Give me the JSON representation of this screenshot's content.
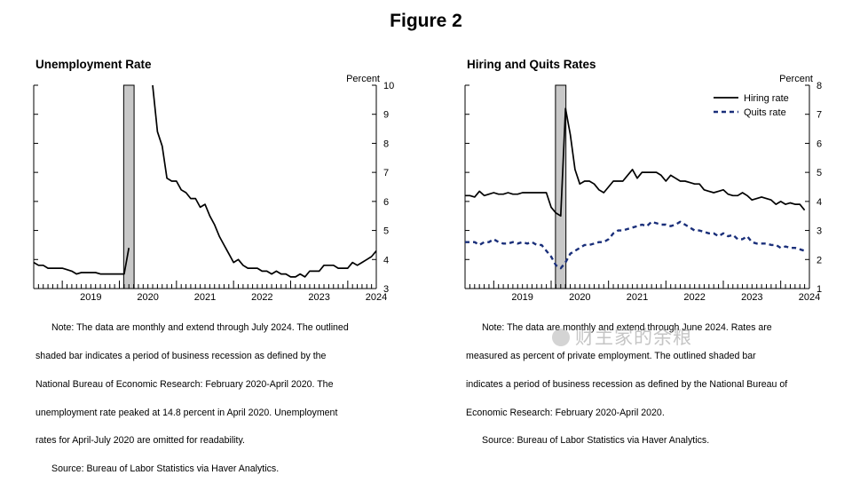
{
  "figure_title": "Figure 2",
  "watermark": "财主家的余粮",
  "chart_data": [
    {
      "type": "line",
      "title": "Unemployment Rate",
      "unit_label": "Percent",
      "x_tick_labels": [
        "2019",
        "2020",
        "2021",
        "2022",
        "2023",
        "2024"
      ],
      "ylim": [
        3,
        10
      ],
      "y_ticks": [
        3,
        4,
        5,
        6,
        7,
        8,
        9,
        10
      ],
      "recession_shading": [
        "2020-02",
        "2020-04"
      ],
      "series": [
        {
          "label": "",
          "color": "#000000",
          "style": "solid",
          "points": [
            [
              "2018-07",
              3.9
            ],
            [
              "2018-08",
              3.8
            ],
            [
              "2018-09",
              3.8
            ],
            [
              "2018-10",
              3.7
            ],
            [
              "2018-11",
              3.7
            ],
            [
              "2018-12",
              3.7
            ],
            [
              "2019-01",
              3.7
            ],
            [
              "2019-02",
              3.65
            ],
            [
              "2019-03",
              3.6
            ],
            [
              "2019-04",
              3.5
            ],
            [
              "2019-05",
              3.55
            ],
            [
              "2019-06",
              3.55
            ],
            [
              "2019-07",
              3.55
            ],
            [
              "2019-08",
              3.55
            ],
            [
              "2019-09",
              3.5
            ],
            [
              "2019-10",
              3.5
            ],
            [
              "2019-11",
              3.5
            ],
            [
              "2019-12",
              3.5
            ],
            [
              "2020-01",
              3.5
            ],
            [
              "2020-02",
              3.5
            ],
            [
              "2020-03",
              4.4
            ],
            null,
            [
              "2020-08",
              10.0
            ],
            [
              "2020-09",
              8.4
            ],
            [
              "2020-10",
              7.9
            ],
            [
              "2020-11",
              6.8
            ],
            [
              "2020-12",
              6.7
            ],
            [
              "2021-01",
              6.7
            ],
            [
              "2021-02",
              6.4
            ],
            [
              "2021-03",
              6.3
            ],
            [
              "2021-04",
              6.1
            ],
            [
              "2021-05",
              6.1
            ],
            [
              "2021-06",
              5.8
            ],
            [
              "2021-07",
              5.9
            ],
            [
              "2021-08",
              5.5
            ],
            [
              "2021-09",
              5.2
            ],
            [
              "2021-10",
              4.8
            ],
            [
              "2021-11",
              4.5
            ],
            [
              "2021-12",
              4.2
            ],
            [
              "2022-01",
              3.9
            ],
            [
              "2022-02",
              4.0
            ],
            [
              "2022-03",
              3.8
            ],
            [
              "2022-04",
              3.7
            ],
            [
              "2022-05",
              3.7
            ],
            [
              "2022-06",
              3.7
            ],
            [
              "2022-07",
              3.6
            ],
            [
              "2022-08",
              3.6
            ],
            [
              "2022-09",
              3.5
            ],
            [
              "2022-10",
              3.6
            ],
            [
              "2022-11",
              3.5
            ],
            [
              "2022-12",
              3.5
            ],
            [
              "2023-01",
              3.4
            ],
            [
              "2023-02",
              3.4
            ],
            [
              "2023-03",
              3.5
            ],
            [
              "2023-04",
              3.4
            ],
            [
              "2023-05",
              3.6
            ],
            [
              "2023-06",
              3.6
            ],
            [
              "2023-07",
              3.6
            ],
            [
              "2023-08",
              3.8
            ],
            [
              "2023-09",
              3.8
            ],
            [
              "2023-10",
              3.8
            ],
            [
              "2023-11",
              3.7
            ],
            [
              "2023-12",
              3.7
            ],
            [
              "2024-01",
              3.7
            ],
            [
              "2024-02",
              3.9
            ],
            [
              "2024-03",
              3.8
            ],
            [
              "2024-04",
              3.9
            ],
            [
              "2024-05",
              4.0
            ],
            [
              "2024-06",
              4.1
            ],
            [
              "2024-07",
              4.3
            ]
          ]
        }
      ],
      "notes": [
        "Note: The data are monthly and extend through July 2024. The outlined",
        "shaded bar indicates a period of business recession as defined by the",
        "National Bureau of Economic Research: February 2020-April 2020. The",
        "unemployment rate peaked at 14.8 percent in April 2020. Unemployment",
        "rates for April-July 2020 are omitted for readability."
      ],
      "source": "Source: Bureau of Labor Statistics via Haver Analytics."
    },
    {
      "type": "line",
      "title": "Hiring and Quits Rates",
      "unit_label": "Percent",
      "x_tick_labels": [
        "2019",
        "2020",
        "2021",
        "2022",
        "2023",
        "2024"
      ],
      "ylim": [
        1,
        8
      ],
      "y_ticks": [
        1,
        2,
        3,
        4,
        5,
        6,
        7,
        8
      ],
      "legend_position": "top-right",
      "recession_shading": [
        "2020-02",
        "2020-04"
      ],
      "series": [
        {
          "label": "Hiring rate",
          "color": "#000000",
          "style": "solid",
          "points": [
            [
              "2018-07",
              4.2
            ],
            [
              "2018-08",
              4.2
            ],
            [
              "2018-09",
              4.15
            ],
            [
              "2018-10",
              4.35
            ],
            [
              "2018-11",
              4.2
            ],
            [
              "2018-12",
              4.25
            ],
            [
              "2019-01",
              4.3
            ],
            [
              "2019-02",
              4.25
            ],
            [
              "2019-03",
              4.25
            ],
            [
              "2019-04",
              4.3
            ],
            [
              "2019-05",
              4.25
            ],
            [
              "2019-06",
              4.25
            ],
            [
              "2019-07",
              4.3
            ],
            [
              "2019-08",
              4.3
            ],
            [
              "2019-09",
              4.3
            ],
            [
              "2019-10",
              4.3
            ],
            [
              "2019-11",
              4.3
            ],
            [
              "2019-12",
              4.3
            ],
            [
              "2020-01",
              3.8
            ],
            [
              "2020-02",
              3.6
            ],
            [
              "2020-03",
              3.5
            ],
            [
              "2020-04",
              7.2
            ],
            [
              "2020-05",
              6.3
            ],
            [
              "2020-06",
              5.1
            ],
            [
              "2020-07",
              4.6
            ],
            [
              "2020-08",
              4.7
            ],
            [
              "2020-09",
              4.7
            ],
            [
              "2020-10",
              4.6
            ],
            [
              "2020-11",
              4.4
            ],
            [
              "2020-12",
              4.3
            ],
            [
              "2021-01",
              4.5
            ],
            [
              "2021-02",
              4.7
            ],
            [
              "2021-03",
              4.7
            ],
            [
              "2021-04",
              4.7
            ],
            [
              "2021-05",
              4.9
            ],
            [
              "2021-06",
              5.1
            ],
            [
              "2021-07",
              4.8
            ],
            [
              "2021-08",
              5.0
            ],
            [
              "2021-09",
              5.0
            ],
            [
              "2021-10",
              5.0
            ],
            [
              "2021-11",
              5.0
            ],
            [
              "2021-12",
              4.9
            ],
            [
              "2022-01",
              4.7
            ],
            [
              "2022-02",
              4.9
            ],
            [
              "2022-03",
              4.8
            ],
            [
              "2022-04",
              4.7
            ],
            [
              "2022-05",
              4.7
            ],
            [
              "2022-06",
              4.65
            ],
            [
              "2022-07",
              4.6
            ],
            [
              "2022-08",
              4.6
            ],
            [
              "2022-09",
              4.4
            ],
            [
              "2022-10",
              4.35
            ],
            [
              "2022-11",
              4.3
            ],
            [
              "2022-12",
              4.35
            ],
            [
              "2023-01",
              4.4
            ],
            [
              "2023-02",
              4.25
            ],
            [
              "2023-03",
              4.2
            ],
            [
              "2023-04",
              4.2
            ],
            [
              "2023-05",
              4.3
            ],
            [
              "2023-06",
              4.2
            ],
            [
              "2023-07",
              4.05
            ],
            [
              "2023-08",
              4.1
            ],
            [
              "2023-09",
              4.15
            ],
            [
              "2023-10",
              4.1
            ],
            [
              "2023-11",
              4.05
            ],
            [
              "2023-12",
              3.9
            ],
            [
              "2024-01",
              4.0
            ],
            [
              "2024-02",
              3.9
            ],
            [
              "2024-03",
              3.95
            ],
            [
              "2024-04",
              3.9
            ],
            [
              "2024-05",
              3.9
            ],
            [
              "2024-06",
              3.7
            ]
          ]
        },
        {
          "label": "Quits rate",
          "color": "#1a2f7a",
          "style": "dashed",
          "points": [
            [
              "2018-07",
              2.6
            ],
            [
              "2018-08",
              2.6
            ],
            [
              "2018-09",
              2.6
            ],
            [
              "2018-10",
              2.5
            ],
            [
              "2018-11",
              2.6
            ],
            [
              "2018-12",
              2.6
            ],
            [
              "2019-01",
              2.7
            ],
            [
              "2019-02",
              2.6
            ],
            [
              "2019-03",
              2.55
            ],
            [
              "2019-04",
              2.55
            ],
            [
              "2019-05",
              2.6
            ],
            [
              "2019-06",
              2.55
            ],
            [
              "2019-07",
              2.6
            ],
            [
              "2019-08",
              2.55
            ],
            [
              "2019-09",
              2.6
            ],
            [
              "2019-10",
              2.5
            ],
            [
              "2019-11",
              2.5
            ],
            [
              "2019-12",
              2.3
            ],
            [
              "2020-01",
              2.1
            ],
            [
              "2020-02",
              1.8
            ],
            [
              "2020-03",
              1.7
            ],
            [
              "2020-04",
              1.9
            ],
            [
              "2020-05",
              2.2
            ],
            [
              "2020-06",
              2.3
            ],
            [
              "2020-07",
              2.4
            ],
            [
              "2020-08",
              2.5
            ],
            [
              "2020-09",
              2.5
            ],
            [
              "2020-10",
              2.55
            ],
            [
              "2020-11",
              2.6
            ],
            [
              "2020-12",
              2.6
            ],
            [
              "2021-01",
              2.7
            ],
            [
              "2021-02",
              2.9
            ],
            [
              "2021-03",
              3.0
            ],
            [
              "2021-04",
              3.0
            ],
            [
              "2021-05",
              3.05
            ],
            [
              "2021-06",
              3.1
            ],
            [
              "2021-07",
              3.15
            ],
            [
              "2021-08",
              3.2
            ],
            [
              "2021-09",
              3.15
            ],
            [
              "2021-10",
              3.3
            ],
            [
              "2021-11",
              3.25
            ],
            [
              "2021-12",
              3.2
            ],
            [
              "2022-01",
              3.2
            ],
            [
              "2022-02",
              3.15
            ],
            [
              "2022-03",
              3.2
            ],
            [
              "2022-04",
              3.3
            ],
            [
              "2022-05",
              3.2
            ],
            [
              "2022-06",
              3.1
            ],
            [
              "2022-07",
              3.0
            ],
            [
              "2022-08",
              3.0
            ],
            [
              "2022-09",
              2.95
            ],
            [
              "2022-10",
              2.9
            ],
            [
              "2022-11",
              2.9
            ],
            [
              "2022-12",
              2.8
            ],
            [
              "2023-01",
              2.9
            ],
            [
              "2023-02",
              2.8
            ],
            [
              "2023-03",
              2.85
            ],
            [
              "2023-04",
              2.7
            ],
            [
              "2023-05",
              2.7
            ],
            [
              "2023-06",
              2.8
            ],
            [
              "2023-07",
              2.6
            ],
            [
              "2023-08",
              2.55
            ],
            [
              "2023-09",
              2.55
            ],
            [
              "2023-10",
              2.55
            ],
            [
              "2023-11",
              2.5
            ],
            [
              "2023-12",
              2.5
            ],
            [
              "2024-01",
              2.4
            ],
            [
              "2024-02",
              2.45
            ],
            [
              "2024-03",
              2.4
            ],
            [
              "2024-04",
              2.4
            ],
            [
              "2024-05",
              2.35
            ],
            [
              "2024-06",
              2.3
            ]
          ]
        }
      ],
      "notes": [
        "Note: The data are monthly and extend through June 2024. Rates are",
        "measured as percent of private employment. The outlined shaded bar",
        "indicates a period of business recession as defined by the National Bureau of",
        "Economic Research: February 2020-April 2020."
      ],
      "source": "Source: Bureau of Labor Statistics via Haver Analytics."
    }
  ]
}
